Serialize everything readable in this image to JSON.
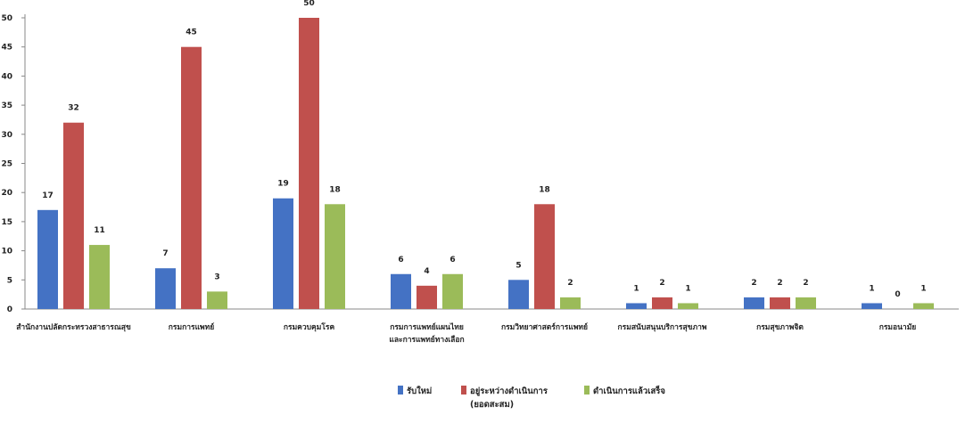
{
  "chart_data": {
    "type": "bar",
    "categories": [
      [
        "สำนักงานปลัดกระทรวงสาธารณสุข"
      ],
      [
        "กรมการแพทย์"
      ],
      [
        "กรมควบคุมโรค"
      ],
      [
        "กรมการแพทย์แผนไทย",
        "และการแพทย์ทางเลือก"
      ],
      [
        "กรมวิทยาศาสตร์การแพทย์"
      ],
      [
        "กรมสนับสนุนบริการสุขภาพ"
      ],
      [
        "กรมสุขภาพจิต"
      ],
      [
        "กรมอนามัย"
      ]
    ],
    "series": [
      {
        "name": "รับใหม่",
        "color": "#4472C4",
        "values": [
          17,
          7,
          19,
          6,
          5,
          1,
          2,
          1
        ]
      },
      {
        "name": "อยู่ระหว่างดำเนินการ\n(ยอดสะสม)",
        "color": "#C0504D",
        "values": [
          32,
          45,
          50,
          4,
          18,
          2,
          2,
          0
        ]
      },
      {
        "name": "ดำเนินการแล้วเสร็จ",
        "color": "#9BBB59",
        "values": [
          11,
          3,
          18,
          6,
          2,
          1,
          2,
          1
        ]
      }
    ],
    "yticks": [
      0,
      5,
      10,
      15,
      20,
      25,
      30,
      35,
      40,
      45,
      50
    ],
    "ylim": [
      0,
      50
    ],
    "grid": false,
    "legend_position": "bottom-center",
    "title": "",
    "xlabel": "",
    "ylabel": ""
  }
}
